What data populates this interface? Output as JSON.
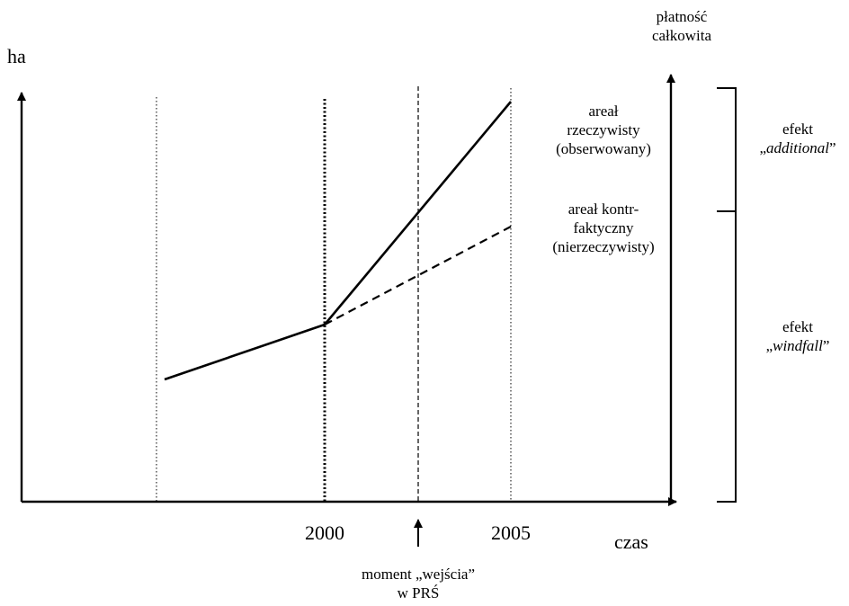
{
  "axes": {
    "y_label": "ha",
    "x_label": "czas",
    "right_axis_label_line1": "płatność",
    "right_axis_label_line2": "całkowita"
  },
  "ticks": {
    "year_2000": "2000",
    "year_2005": "2005"
  },
  "entry_marker": {
    "line1": "moment „wejścia”",
    "line2": "w PRŚ"
  },
  "series_labels": {
    "actual": {
      "line1": "areał",
      "line2": "rzeczywisty",
      "line3": "(obserwowany)"
    },
    "counterfactual": {
      "line1": "areał kontr-",
      "line2": "faktyczny",
      "line3": "(nierzeczywisty)"
    }
  },
  "effects": {
    "additional": {
      "line1": "efekt",
      "quote_open": "„",
      "name": "additional",
      "quote_close": "”"
    },
    "windfall": {
      "line1": "efekt",
      "quote_open": "„",
      "name": "windfall",
      "quote_close": "”"
    }
  },
  "colors": {
    "line": "#000000",
    "background": "#ffffff"
  }
}
